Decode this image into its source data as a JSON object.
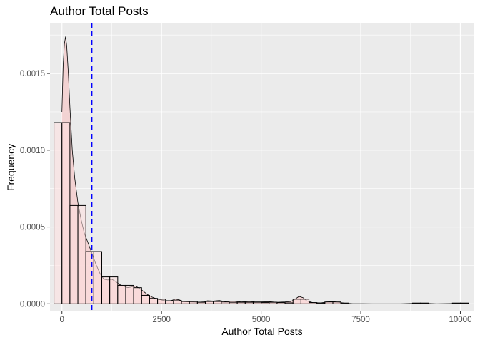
{
  "chart_data": {
    "type": "histogram",
    "title": "Author Total Posts",
    "xlabel": "Author Total Posts",
    "ylabel": "Frequency",
    "xlim": [
      -300,
      10350
    ],
    "ylim": [
      -4.5e-05,
      0.00183
    ],
    "x_ticks": [
      0,
      2500,
      5000,
      7500,
      10000
    ],
    "x_tick_labels": [
      "0",
      "2500",
      "5000",
      "7500",
      "10000"
    ],
    "y_ticks": [
      0.0,
      0.0005,
      0.001,
      0.0015
    ],
    "y_tick_labels": [
      "0.0000",
      "0.0005",
      "0.0010",
      "0.0015"
    ],
    "grid": true,
    "panel_background": "#ebebeb",
    "bar_fill": "#ffe0e0",
    "bar_outline": "#000000",
    "density_fill": "#f4cccc",
    "mean_line": {
      "x": 745,
      "color": "#0000ff",
      "style": "dashed"
    },
    "bin_width": 200,
    "bins": [
      {
        "x0": -200,
        "x1": 0,
        "y": 0.00118
      },
      {
        "x0": 0,
        "x1": 200,
        "y": 0.00118
      },
      {
        "x0": 200,
        "x1": 400,
        "y": 0.00064
      },
      {
        "x0": 400,
        "x1": 600,
        "y": 0.00064
      },
      {
        "x0": 600,
        "x1": 800,
        "y": 0.00034
      },
      {
        "x0": 800,
        "x1": 1000,
        "y": 0.00034
      },
      {
        "x0": 1000,
        "x1": 1200,
        "y": 0.000175
      },
      {
        "x0": 1200,
        "x1": 1400,
        "y": 0.000175
      },
      {
        "x0": 1400,
        "x1": 1600,
        "y": 0.00012
      },
      {
        "x0": 1600,
        "x1": 1800,
        "y": 0.00012
      },
      {
        "x0": 1800,
        "x1": 2000,
        "y": 0.000105
      },
      {
        "x0": 2000,
        "x1": 2200,
        "y": 5.5e-05
      },
      {
        "x0": 2200,
        "x1": 2400,
        "y": 3.5e-05
      },
      {
        "x0": 2400,
        "x1": 2600,
        "y": 3e-05
      },
      {
        "x0": 2600,
        "x1": 2800,
        "y": 2e-05
      },
      {
        "x0": 2800,
        "x1": 3000,
        "y": 2e-05
      },
      {
        "x0": 3000,
        "x1": 3200,
        "y": 1.5e-05
      },
      {
        "x0": 3200,
        "x1": 3400,
        "y": 1.5e-05
      },
      {
        "x0": 3400,
        "x1": 3600,
        "y": 1e-05
      },
      {
        "x0": 3600,
        "x1": 3800,
        "y": 1.5e-05
      },
      {
        "x0": 3800,
        "x1": 4000,
        "y": 1.5e-05
      },
      {
        "x0": 4000,
        "x1": 4200,
        "y": 1.2e-05
      },
      {
        "x0": 4200,
        "x1": 4400,
        "y": 1e-05
      },
      {
        "x0": 4400,
        "x1": 4600,
        "y": 1e-05
      },
      {
        "x0": 4600,
        "x1": 4800,
        "y": 1e-05
      },
      {
        "x0": 4800,
        "x1": 5000,
        "y": 1e-05
      },
      {
        "x0": 5000,
        "x1": 5200,
        "y": 8e-06
      },
      {
        "x0": 5200,
        "x1": 5400,
        "y": 1e-05
      },
      {
        "x0": 5400,
        "x1": 5600,
        "y": 8e-06
      },
      {
        "x0": 5600,
        "x1": 5800,
        "y": 6e-06
      },
      {
        "x0": 5800,
        "x1": 6000,
        "y": 3e-05
      },
      {
        "x0": 6000,
        "x1": 6200,
        "y": 3e-05
      },
      {
        "x0": 6200,
        "x1": 6400,
        "y": 8e-06
      },
      {
        "x0": 6400,
        "x1": 6600,
        "y": 5e-06
      },
      {
        "x0": 6600,
        "x1": 6800,
        "y": 1.2e-05
      },
      {
        "x0": 6800,
        "x1": 7000,
        "y": 1.2e-05
      },
      {
        "x0": 7000,
        "x1": 7200,
        "y": 5e-06
      },
      {
        "x0": 8800,
        "x1": 9000,
        "y": 5e-06
      },
      {
        "x0": 9000,
        "x1": 9200,
        "y": 5e-06
      },
      {
        "x0": 9800,
        "x1": 10000,
        "y": 5e-06
      },
      {
        "x0": 10000,
        "x1": 10200,
        "y": 5e-06
      }
    ],
    "density": [
      [
        0,
        0.00125
      ],
      [
        30,
        0.00155
      ],
      [
        60,
        0.00169
      ],
      [
        90,
        0.00174
      ],
      [
        120,
        0.00168
      ],
      [
        160,
        0.0015
      ],
      [
        200,
        0.00128
      ],
      [
        260,
        0.001
      ],
      [
        320,
        0.00082
      ],
      [
        400,
        0.00066
      ],
      [
        480,
        0.00055
      ],
      [
        560,
        0.00046
      ],
      [
        650,
        0.0004
      ],
      [
        750,
        0.00033
      ],
      [
        850,
        0.00026
      ],
      [
        950,
        0.0002
      ],
      [
        1050,
        0.00016
      ],
      [
        1150,
        0.000155
      ],
      [
        1250,
        0.00016
      ],
      [
        1350,
        0.000145
      ],
      [
        1450,
        0.000125
      ],
      [
        1550,
        0.000115
      ],
      [
        1650,
        0.000105
      ],
      [
        1750,
        0.00011
      ],
      [
        1850,
        0.000115
      ],
      [
        1950,
        0.0001
      ],
      [
        2050,
        8e-05
      ],
      [
        2150,
        6e-05
      ],
      [
        2250,
        4.5e-05
      ],
      [
        2350,
        3.5e-05
      ],
      [
        2450,
        2.8e-05
      ],
      [
        2550,
        2.2e-05
      ],
      [
        2650,
        1.8e-05
      ],
      [
        2750,
        2.2e-05
      ],
      [
        2850,
        3e-05
      ],
      [
        2950,
        2.5e-05
      ],
      [
        3050,
        1.5e-05
      ],
      [
        3200,
        1.2e-05
      ],
      [
        3400,
        1e-05
      ],
      [
        3550,
        1.2e-05
      ],
      [
        3650,
        2e-05
      ],
      [
        3800,
        1.8e-05
      ],
      [
        3950,
        2.2e-05
      ],
      [
        4100,
        1.5e-05
      ],
      [
        4300,
        1.8e-05
      ],
      [
        4500,
        1.2e-05
      ],
      [
        4700,
        1.6e-05
      ],
      [
        4850,
        1.2e-05
      ],
      [
        5000,
        1.2e-05
      ],
      [
        5200,
        1.4e-05
      ],
      [
        5400,
        1e-05
      ],
      [
        5600,
        1.2e-05
      ],
      [
        5750,
        1.5e-05
      ],
      [
        5850,
        3e-05
      ],
      [
        5950,
        4.8e-05
      ],
      [
        6050,
        4e-05
      ],
      [
        6150,
        1.8e-05
      ],
      [
        6300,
        8e-06
      ],
      [
        6500,
        6e-06
      ],
      [
        6650,
        1.2e-05
      ],
      [
        6800,
        1.5e-05
      ],
      [
        6950,
        1e-05
      ],
      [
        7100,
        4e-06
      ],
      [
        7300,
        1e-06
      ],
      [
        7800,
        0.0
      ],
      [
        8500,
        0.0
      ],
      [
        8900,
        3e-06
      ],
      [
        9100,
        3e-06
      ],
      [
        9400,
        0.0
      ],
      [
        9900,
        2e-06
      ],
      [
        10100,
        2e-06
      ],
      [
        10200,
        0.0
      ]
    ]
  }
}
